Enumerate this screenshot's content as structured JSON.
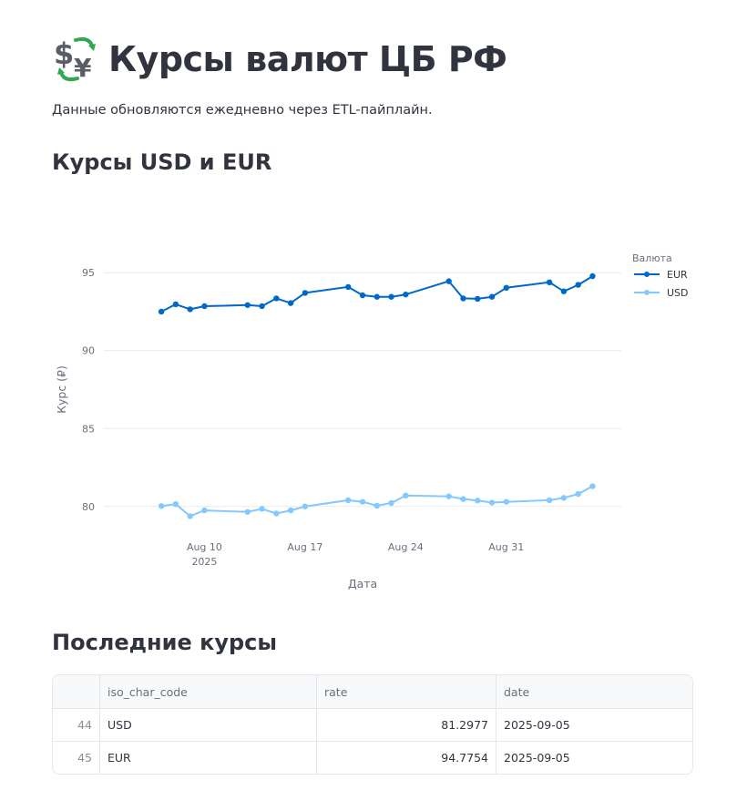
{
  "header": {
    "icon": "currency-exchange-icon",
    "title": "Курсы валют ЦБ РФ",
    "subtitle": "Данные обновляются ежедневно через ETL-пайплайн."
  },
  "chart_section": {
    "heading": "Курсы USD и EUR"
  },
  "chart_data": {
    "type": "line",
    "xlabel": "Дата",
    "ylabel": "Курс (₽)",
    "ylim": [
      78,
      97
    ],
    "y_ticks": [
      "95",
      "90",
      "85",
      "80"
    ],
    "x_ticks": [
      {
        "date": "2025-08-10",
        "label": "Aug 10",
        "sublabel": "2025"
      },
      {
        "date": "2025-08-17",
        "label": "Aug 17"
      },
      {
        "date": "2025-08-24",
        "label": "Aug 24"
      },
      {
        "date": "2025-08-31",
        "label": "Aug 31"
      }
    ],
    "grid": true,
    "legend": {
      "title": "Валюта",
      "placement": "right"
    },
    "series": [
      {
        "name": "EUR",
        "color": "#0068c9",
        "points": [
          [
            "2025-08-07",
            92.5
          ],
          [
            "2025-08-08",
            92.97
          ],
          [
            "2025-08-09",
            92.65
          ],
          [
            "2025-08-10",
            92.85
          ],
          [
            "2025-08-13",
            92.92
          ],
          [
            "2025-08-14",
            92.85
          ],
          [
            "2025-08-15",
            93.35
          ],
          [
            "2025-08-16",
            93.05
          ],
          [
            "2025-08-17",
            93.7
          ],
          [
            "2025-08-20",
            94.08
          ],
          [
            "2025-08-21",
            93.55
          ],
          [
            "2025-08-22",
            93.45
          ],
          [
            "2025-08-23",
            93.45
          ],
          [
            "2025-08-24",
            93.6
          ],
          [
            "2025-08-27",
            94.45
          ],
          [
            "2025-08-28",
            93.35
          ],
          [
            "2025-08-29",
            93.32
          ],
          [
            "2025-08-30",
            93.45
          ],
          [
            "2025-08-31",
            94.03
          ],
          [
            "2025-09-03",
            94.38
          ],
          [
            "2025-09-04",
            93.8
          ],
          [
            "2025-09-05",
            94.22
          ],
          [
            "2025-09-06",
            94.7754
          ]
        ]
      },
      {
        "name": "USD",
        "color": "#83c9ff",
        "points": [
          [
            "2025-08-07",
            80.03
          ],
          [
            "2025-08-08",
            80.15
          ],
          [
            "2025-08-09",
            79.38
          ],
          [
            "2025-08-10",
            79.75
          ],
          [
            "2025-08-13",
            79.65
          ],
          [
            "2025-08-14",
            79.85
          ],
          [
            "2025-08-15",
            79.55
          ],
          [
            "2025-08-16",
            79.75
          ],
          [
            "2025-08-17",
            80.0
          ],
          [
            "2025-08-20",
            80.4
          ],
          [
            "2025-08-21",
            80.3
          ],
          [
            "2025-08-22",
            80.05
          ],
          [
            "2025-08-23",
            80.22
          ],
          [
            "2025-08-24",
            80.7
          ],
          [
            "2025-08-27",
            80.65
          ],
          [
            "2025-08-28",
            80.48
          ],
          [
            "2025-08-29",
            80.38
          ],
          [
            "2025-08-30",
            80.25
          ],
          [
            "2025-08-31",
            80.3
          ],
          [
            "2025-09-03",
            80.4
          ],
          [
            "2025-09-04",
            80.55
          ],
          [
            "2025-09-05",
            80.8
          ],
          [
            "2025-09-06",
            81.2977
          ]
        ]
      }
    ]
  },
  "table_section": {
    "heading": "Последние курсы",
    "columns": [
      "",
      "iso_char_code",
      "rate",
      "date"
    ],
    "rows": [
      [
        "44",
        "USD",
        "81.2977",
        "2025-09-05"
      ],
      [
        "45",
        "EUR",
        "94.7754",
        "2025-09-05"
      ]
    ]
  }
}
